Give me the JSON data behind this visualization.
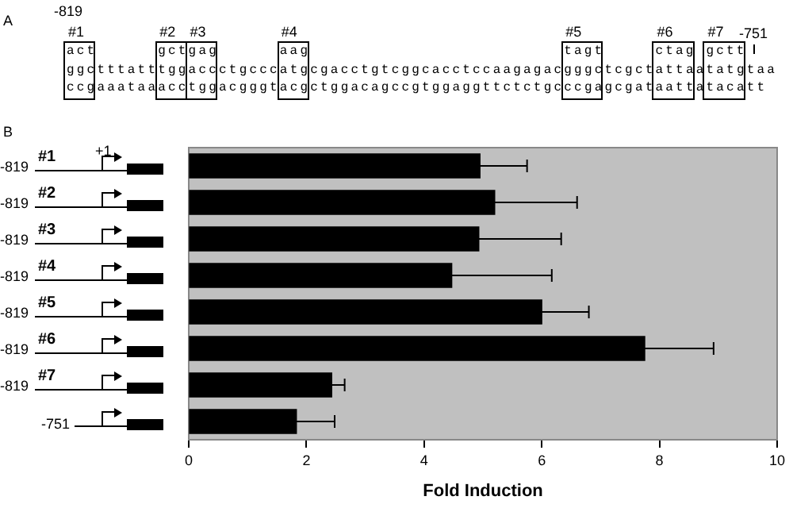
{
  "chart_data": {
    "type": "bar",
    "orientation": "horizontal",
    "xlabel": "Fold Induction",
    "categories": [
      "#1",
      "#2",
      "#3",
      "#4",
      "#5",
      "#6",
      "#7",
      "-751"
    ],
    "values": [
      4.95,
      5.2,
      4.93,
      4.47,
      6.0,
      7.75,
      2.43,
      1.83
    ],
    "errors": [
      [
        4.95,
        5.75
      ],
      [
        5.2,
        6.6
      ],
      [
        4.93,
        6.33
      ],
      [
        4.47,
        6.17
      ],
      [
        6.0,
        6.8
      ],
      [
        7.75,
        8.92
      ],
      [
        2.43,
        2.65
      ],
      [
        1.83,
        2.48
      ]
    ],
    "color": "#000000",
    "xlim": [
      0,
      10
    ],
    "xticks": [
      0,
      2,
      4,
      6,
      8,
      10
    ],
    "legend": false,
    "annotations": [
      "A",
      "B",
      "-819",
      "-751",
      "#1",
      "#2",
      "#3",
      "#4",
      "#5",
      "#6",
      "#7",
      "act",
      "gct",
      "gag",
      "aag",
      "tagt",
      "ctag",
      "gctt",
      "ggctttatttggaccctgcccatgcgacctgtcggcacctccaagagacgggctcgctattaatatgtaa",
      "ccgaaataaacctggacgggtacgctggacagccgtggaggttctctgcccgagcgataattatacatt",
      "+1",
      "-819",
      "-819",
      "-819",
      "-819",
      "-819",
      "-819",
      "-819"
    ]
  }
}
